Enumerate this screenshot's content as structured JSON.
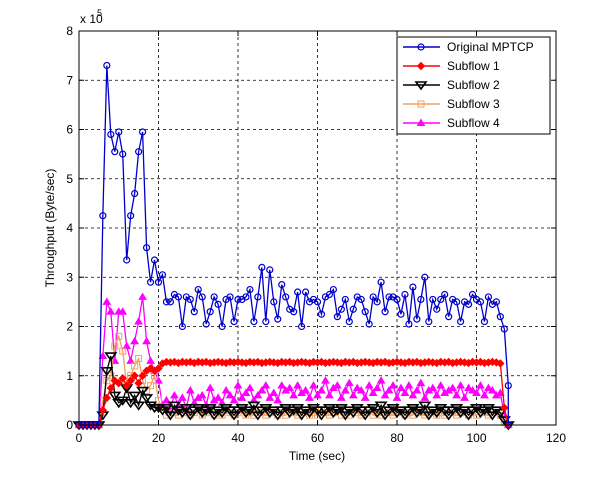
{
  "chart_data": {
    "type": "line",
    "title": "",
    "xlabel": "Time (sec)",
    "ylabel": "Throughput (Byte/sec)",
    "exponent_label": "x 10",
    "exponent_power": "5",
    "xlim": [
      0,
      120
    ],
    "ylim": [
      0,
      8
    ],
    "y_scale_note": "values in units of 1e5 Byte/sec",
    "xticks": [
      0,
      20,
      40,
      60,
      80,
      100,
      120
    ],
    "yticks": [
      0,
      1,
      2,
      3,
      4,
      5,
      6,
      7,
      8
    ],
    "grid": true,
    "legend_position": "top-right",
    "series": [
      {
        "name": "Original MPTCP",
        "color": "#0000cc",
        "marker": "circle",
        "x": [
          0,
          1,
          2,
          3,
          4,
          5,
          6,
          7,
          8,
          9,
          10,
          11,
          12,
          13,
          14,
          15,
          16,
          17,
          18,
          19,
          20,
          21,
          22,
          23,
          24,
          25,
          26,
          27,
          28,
          29,
          30,
          31,
          32,
          33,
          34,
          35,
          36,
          37,
          38,
          39,
          40,
          41,
          42,
          43,
          44,
          45,
          46,
          47,
          48,
          49,
          50,
          51,
          52,
          53,
          54,
          55,
          56,
          57,
          58,
          59,
          60,
          61,
          62,
          63,
          64,
          65,
          66,
          67,
          68,
          69,
          70,
          71,
          72,
          73,
          74,
          75,
          76,
          77,
          78,
          79,
          80,
          81,
          82,
          83,
          84,
          85,
          86,
          87,
          88,
          89,
          90,
          91,
          92,
          93,
          94,
          95,
          96,
          97,
          98,
          99,
          100,
          101,
          102,
          103,
          104,
          105,
          106,
          107,
          108
        ],
        "y": [
          0,
          0,
          0,
          0,
          0,
          0,
          4.25,
          7.3,
          5.9,
          5.55,
          5.95,
          5.5,
          3.35,
          4.25,
          4.7,
          5.55,
          5.95,
          3.6,
          2.9,
          3.35,
          2.9,
          3.05,
          2.5,
          2.5,
          2.65,
          2.6,
          2.0,
          2.6,
          2.55,
          2.3,
          2.75,
          2.6,
          2.05,
          2.3,
          2.6,
          2.45,
          2.0,
          2.55,
          2.6,
          2.1,
          2.55,
          2.55,
          2.6,
          2.75,
          2.1,
          2.6,
          3.2,
          2.1,
          3.15,
          2.5,
          2.15,
          2.85,
          2.6,
          2.35,
          2.3,
          2.7,
          2.0,
          2.7,
          2.5,
          2.55,
          2.5,
          2.25,
          2.6,
          2.65,
          2.75,
          2.2,
          2.35,
          2.55,
          2.1,
          2.35,
          2.6,
          2.55,
          2.3,
          2.05,
          2.6,
          2.5,
          2.9,
          2.3,
          2.6,
          2.6,
          2.55,
          2.25,
          2.65,
          2.05,
          2.8,
          2.15,
          2.55,
          3.0,
          2.1,
          2.55,
          2.35,
          2.55,
          2.65,
          2.2,
          2.55,
          2.5,
          2.1,
          2.5,
          2.45,
          2.65,
          2.55,
          2.5,
          2.1,
          2.6,
          2.45,
          2.5,
          2.2,
          1.95,
          0.8
        ],
        "x_end": [
          108
        ],
        "y_end": [
          0
        ]
      },
      {
        "name": "Subflow 1",
        "color": "#ff0000",
        "marker": "diamond",
        "x": [
          0,
          1,
          2,
          3,
          4,
          5,
          6,
          7,
          8,
          9,
          10,
          11,
          12,
          13,
          14,
          15,
          16,
          17,
          18,
          19,
          20,
          21,
          22,
          23,
          24,
          25,
          26,
          27,
          28,
          29,
          30,
          31,
          32,
          33,
          34,
          35,
          36,
          37,
          38,
          39,
          40,
          41,
          42,
          43,
          44,
          45,
          46,
          47,
          48,
          49,
          50,
          51,
          52,
          53,
          54,
          55,
          56,
          57,
          58,
          59,
          60,
          61,
          62,
          63,
          64,
          65,
          66,
          67,
          68,
          69,
          70,
          71,
          72,
          73,
          74,
          75,
          76,
          77,
          78,
          79,
          80,
          81,
          82,
          83,
          84,
          85,
          86,
          87,
          88,
          89,
          90,
          91,
          92,
          93,
          94,
          95,
          96,
          97,
          98,
          99,
          100,
          101,
          102,
          103,
          104,
          105,
          106,
          107,
          108
        ],
        "y": [
          0,
          0,
          0,
          0,
          0,
          0,
          0.3,
          0.55,
          0.75,
          0.9,
          0.85,
          0.95,
          0.8,
          0.9,
          1.0,
          0.85,
          1.0,
          1.1,
          1.15,
          1.1,
          1.15,
          1.25,
          1.28,
          1.27,
          1.28,
          1.26,
          1.28,
          1.27,
          1.28,
          1.26,
          1.28,
          1.27,
          1.28,
          1.26,
          1.27,
          1.28,
          1.27,
          1.26,
          1.28,
          1.27,
          1.28,
          1.27,
          1.26,
          1.28,
          1.27,
          1.28,
          1.26,
          1.27,
          1.28,
          1.27,
          1.26,
          1.28,
          1.27,
          1.28,
          1.26,
          1.27,
          1.28,
          1.27,
          1.26,
          1.28,
          1.27,
          1.28,
          1.26,
          1.27,
          1.28,
          1.27,
          1.26,
          1.28,
          1.27,
          1.28,
          1.26,
          1.27,
          1.28,
          1.27,
          1.26,
          1.28,
          1.27,
          1.28,
          1.26,
          1.27,
          1.28,
          1.27,
          1.26,
          1.28,
          1.27,
          1.28,
          1.26,
          1.27,
          1.28,
          1.27,
          1.26,
          1.28,
          1.27,
          1.28,
          1.26,
          1.27,
          1.28,
          1.27,
          1.26,
          1.28,
          1.27,
          1.28,
          1.26,
          1.27,
          1.28,
          1.27,
          1.25,
          0.35,
          0
        ]
      },
      {
        "name": "Subflow 2",
        "color": "#000000",
        "marker": "triangle-down",
        "x": [
          0,
          1,
          2,
          3,
          4,
          5,
          6,
          7,
          8,
          9,
          10,
          11,
          12,
          13,
          14,
          15,
          16,
          17,
          18,
          19,
          20,
          21,
          22,
          23,
          24,
          25,
          26,
          27,
          28,
          29,
          30,
          31,
          32,
          33,
          34,
          35,
          36,
          37,
          38,
          39,
          40,
          41,
          42,
          43,
          44,
          45,
          46,
          47,
          48,
          49,
          50,
          51,
          52,
          53,
          54,
          55,
          56,
          57,
          58,
          59,
          60,
          61,
          62,
          63,
          64,
          65,
          66,
          67,
          68,
          69,
          70,
          71,
          72,
          73,
          74,
          75,
          76,
          77,
          78,
          79,
          80,
          81,
          82,
          83,
          84,
          85,
          86,
          87,
          88,
          89,
          90,
          91,
          92,
          93,
          94,
          95,
          96,
          97,
          98,
          99,
          100,
          101,
          102,
          103,
          104,
          105,
          106,
          107,
          108
        ],
        "y": [
          0,
          0,
          0,
          0,
          0,
          0,
          0.2,
          1.1,
          1.4,
          0.6,
          0.45,
          0.5,
          0.75,
          0.45,
          0.6,
          0.4,
          0.7,
          0.55,
          0.4,
          0.35,
          0.35,
          0.3,
          0.35,
          0.2,
          0.4,
          0.3,
          0.25,
          0.35,
          0.2,
          0.3,
          0.35,
          0.25,
          0.3,
          0.35,
          0.2,
          0.3,
          0.25,
          0.35,
          0.3,
          0.2,
          0.3,
          0.35,
          0.25,
          0.3,
          0.4,
          0.2,
          0.3,
          0.35,
          0.25,
          0.3,
          0.2,
          0.3,
          0.35,
          0.25,
          0.3,
          0.35,
          0.2,
          0.3,
          0.25,
          0.35,
          0.3,
          0.2,
          0.3,
          0.35,
          0.25,
          0.3,
          0.35,
          0.2,
          0.3,
          0.25,
          0.35,
          0.3,
          0.2,
          0.3,
          0.35,
          0.25,
          0.4,
          0.2,
          0.3,
          0.35,
          0.25,
          0.3,
          0.2,
          0.3,
          0.35,
          0.25,
          0.3,
          0.4,
          0.2,
          0.3,
          0.25,
          0.35,
          0.3,
          0.2,
          0.3,
          0.35,
          0.25,
          0.3,
          0.2,
          0.3,
          0.35,
          0.25,
          0.3,
          0.35,
          0.2,
          0.3,
          0.25,
          0.1,
          0
        ]
      },
      {
        "name": "Subflow 3",
        "color": "#f0a060",
        "marker": "square",
        "x": [
          0,
          1,
          2,
          3,
          4,
          5,
          6,
          7,
          8,
          9,
          10,
          11,
          12,
          13,
          14,
          15,
          16,
          17,
          18,
          19,
          20,
          21,
          22,
          23,
          24,
          25,
          26,
          27,
          28,
          29,
          30,
          31,
          32,
          33,
          34,
          35,
          36,
          37,
          38,
          39,
          40,
          41,
          42,
          43,
          44,
          45,
          46,
          47,
          48,
          49,
          50,
          51,
          52,
          53,
          54,
          55,
          56,
          57,
          58,
          59,
          60,
          61,
          62,
          63,
          64,
          65,
          66,
          67,
          68,
          69,
          70,
          71,
          72,
          73,
          74,
          75,
          76,
          77,
          78,
          79,
          80,
          81,
          82,
          83,
          84,
          85,
          86,
          87,
          88,
          89,
          90,
          91,
          92,
          93,
          94,
          95,
          96,
          97,
          98,
          99,
          100,
          101,
          102,
          103,
          104,
          105,
          106,
          107,
          108
        ],
        "y": [
          0,
          0,
          0,
          0,
          0,
          0,
          0.5,
          0.9,
          1.0,
          1.6,
          1.8,
          1.5,
          0.8,
          1.0,
          1.2,
          1.35,
          0.9,
          0.7,
          0.8,
          1.0,
          0.5,
          0.35,
          0.2,
          0.3,
          0.25,
          0.2,
          0.3,
          0.25,
          0.2,
          0.25,
          0.3,
          0.2,
          0.25,
          0.3,
          0.2,
          0.25,
          0.2,
          0.3,
          0.25,
          0.2,
          0.25,
          0.3,
          0.2,
          0.25,
          0.2,
          0.3,
          0.25,
          0.2,
          0.25,
          0.3,
          0.2,
          0.25,
          0.2,
          0.3,
          0.25,
          0.2,
          0.25,
          0.3,
          0.2,
          0.25,
          0.2,
          0.3,
          0.25,
          0.2,
          0.25,
          0.3,
          0.2,
          0.25,
          0.2,
          0.3,
          0.25,
          0.2,
          0.25,
          0.3,
          0.2,
          0.25,
          0.2,
          0.3,
          0.25,
          0.2,
          0.25,
          0.3,
          0.2,
          0.25,
          0.2,
          0.3,
          0.25,
          0.2,
          0.25,
          0.3,
          0.2,
          0.25,
          0.2,
          0.3,
          0.25,
          0.2,
          0.25,
          0.3,
          0.2,
          0.25,
          0.2,
          0.3,
          0.25,
          0.2,
          0.25,
          0.3,
          0.2,
          0.05,
          0
        ]
      },
      {
        "name": "Subflow 4",
        "color": "#ff00ff",
        "marker": "triangle-up",
        "x": [
          0,
          1,
          2,
          3,
          4,
          5,
          6,
          7,
          8,
          9,
          10,
          11,
          12,
          13,
          14,
          15,
          16,
          17,
          18,
          19,
          20,
          21,
          22,
          23,
          24,
          25,
          26,
          27,
          28,
          29,
          30,
          31,
          32,
          33,
          34,
          35,
          36,
          37,
          38,
          39,
          40,
          41,
          42,
          43,
          44,
          45,
          46,
          47,
          48,
          49,
          50,
          51,
          52,
          53,
          54,
          55,
          56,
          57,
          58,
          59,
          60,
          61,
          62,
          63,
          64,
          65,
          66,
          67,
          68,
          69,
          70,
          71,
          72,
          73,
          74,
          75,
          76,
          77,
          78,
          79,
          80,
          81,
          82,
          83,
          84,
          85,
          86,
          87,
          88,
          89,
          90,
          91,
          92,
          93,
          94,
          95,
          96,
          97,
          98,
          99,
          100,
          101,
          102,
          103,
          104,
          105,
          106,
          107,
          108
        ],
        "y": [
          0,
          0,
          0,
          0,
          0,
          0,
          1.4,
          2.5,
          2.3,
          1.3,
          2.3,
          2.3,
          1.6,
          1.3,
          1.7,
          2.1,
          2.6,
          1.7,
          1.3,
          1.1,
          0.9,
          0.4,
          0.5,
          0.35,
          0.6,
          0.4,
          0.55,
          0.35,
          0.7,
          0.45,
          0.55,
          0.6,
          0.4,
          0.75,
          0.5,
          0.55,
          0.45,
          0.7,
          0.6,
          0.5,
          0.8,
          0.55,
          0.65,
          0.75,
          0.5,
          0.6,
          0.7,
          0.8,
          0.55,
          0.65,
          0.5,
          0.8,
          0.7,
          0.75,
          0.6,
          0.8,
          0.65,
          0.7,
          0.55,
          0.8,
          0.6,
          0.7,
          0.9,
          0.6,
          0.75,
          0.8,
          0.55,
          0.7,
          0.85,
          0.6,
          0.75,
          0.7,
          0.55,
          0.8,
          0.65,
          0.75,
          0.9,
          0.6,
          0.7,
          0.8,
          0.55,
          0.75,
          0.65,
          0.8,
          0.6,
          0.7,
          0.85,
          0.55,
          0.7,
          0.75,
          0.6,
          0.8,
          0.65,
          0.7,
          0.75,
          0.6,
          0.8,
          0.55,
          0.75,
          0.7,
          0.65,
          0.8,
          0.6,
          0.75,
          0.7,
          0.6,
          0.65,
          0.2,
          0
        ]
      }
    ]
  }
}
